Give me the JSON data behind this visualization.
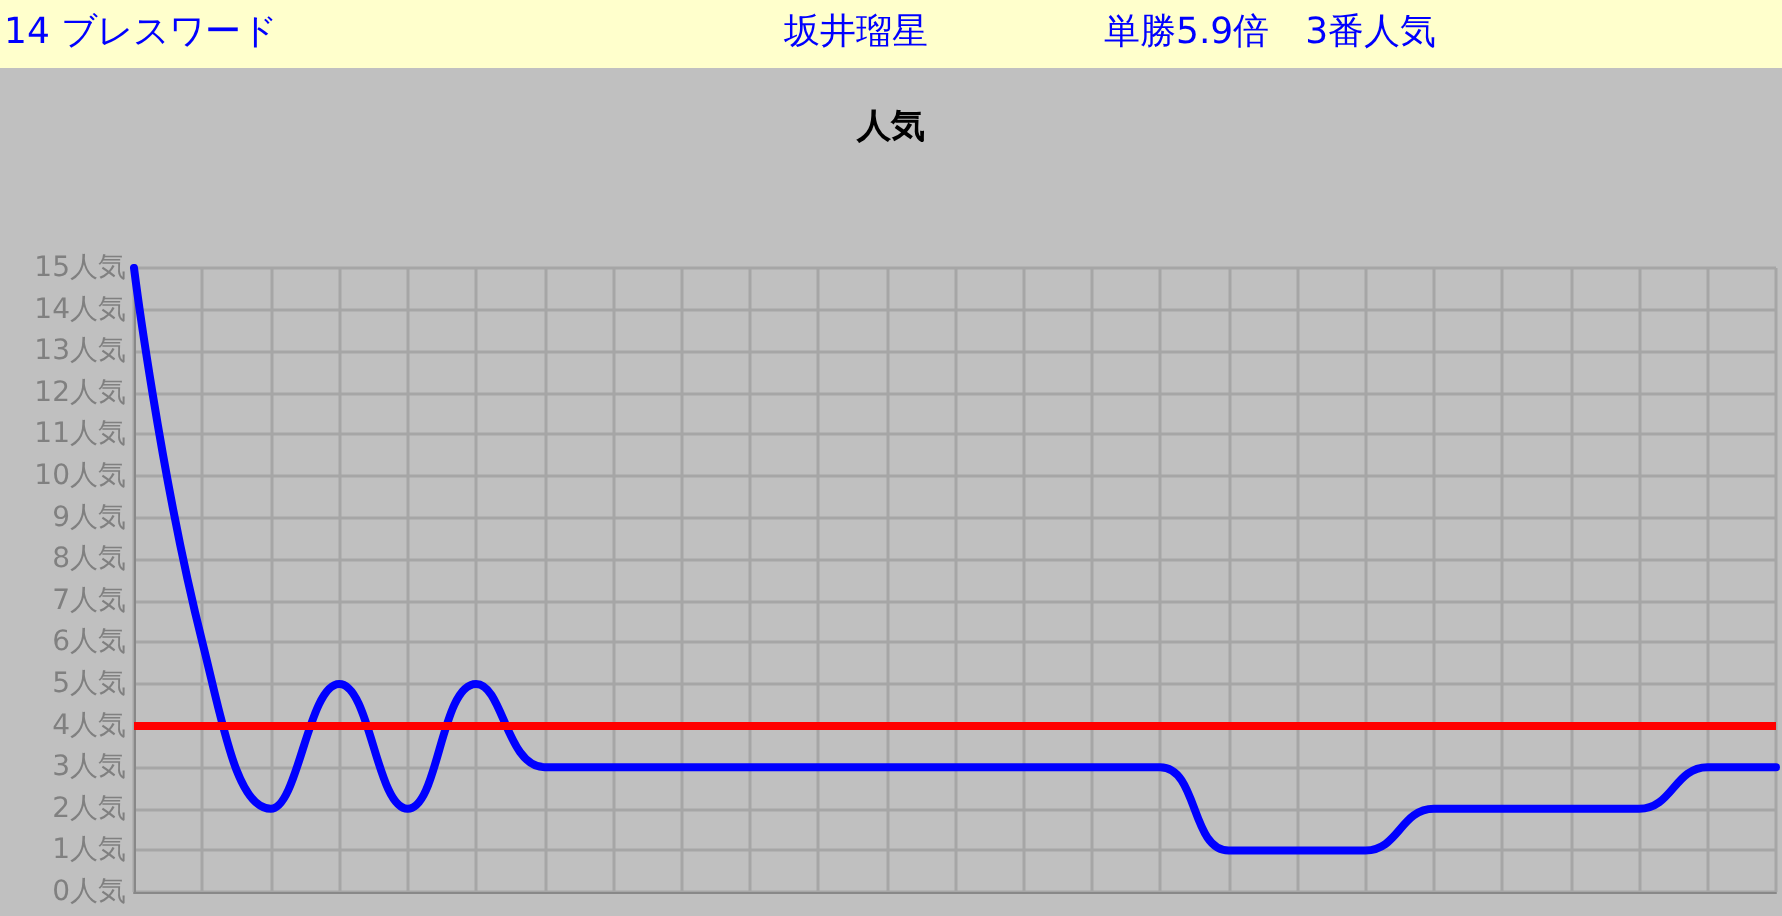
{
  "chart_data": {
    "type": "line",
    "title": "人気",
    "annotations": [
      "14 ブレスワード",
      "坂井瑠星",
      "単勝5.9倍　3番人気"
    ],
    "categories": [
      null,
      null,
      null,
      null,
      null,
      null,
      null,
      null,
      null,
      null,
      null,
      null,
      null,
      null,
      null,
      null,
      null,
      null,
      null,
      null,
      null,
      null,
      null,
      null,
      null
    ],
    "series": [
      {
        "color": "#0000ff",
        "values": [
          15,
          6,
          2,
          5,
          2,
          5,
          3,
          3,
          3,
          3,
          3,
          3,
          3,
          3,
          3,
          3,
          1,
          1,
          1,
          2,
          2,
          2,
          2,
          3,
          3
        ]
      }
    ],
    "ylim": [
      0,
      15
    ],
    "yticks": [
      {
        "value": 0,
        "label": "0人気"
      },
      {
        "value": 1,
        "label": "1人気"
      },
      {
        "value": 2,
        "label": "2人気"
      },
      {
        "value": 3,
        "label": "3人気"
      },
      {
        "value": 4,
        "label": "4人気"
      },
      {
        "value": 5,
        "label": "5人気"
      },
      {
        "value": 6,
        "label": "6人気"
      },
      {
        "value": 7,
        "label": "7人気"
      },
      {
        "value": 8,
        "label": "8人気"
      },
      {
        "value": 9,
        "label": "9人気"
      },
      {
        "value": 10,
        "label": "10人気"
      },
      {
        "value": 11,
        "label": "11人気"
      },
      {
        "value": 12,
        "label": "12人気"
      },
      {
        "value": 13,
        "label": "13人気"
      },
      {
        "value": 14,
        "label": "14人気"
      },
      {
        "value": 15,
        "label": "15人気"
      }
    ],
    "ref_lines": [
      {
        "axis": "y",
        "value": 4,
        "color": "#ff0000"
      }
    ],
    "grid": true,
    "marker": "none",
    "line_style": "solid"
  }
}
